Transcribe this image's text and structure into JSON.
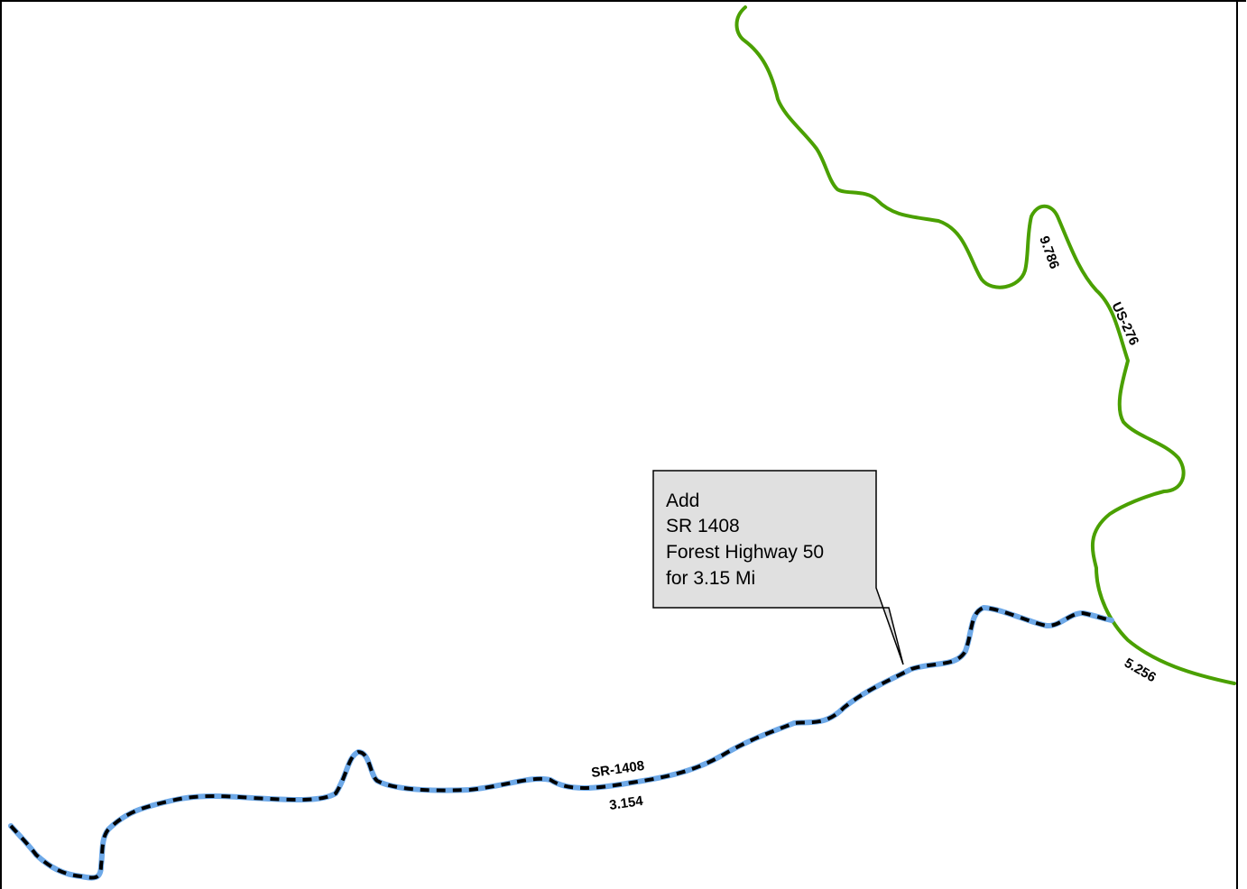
{
  "map": {
    "colors": {
      "highway": "#4aa000",
      "new_route_base": "#6ea9e8",
      "new_route_dash": "#000000",
      "callout_fill": "#e0e0e0",
      "frame": "#000000"
    },
    "roads": {
      "us276": {
        "name_label": "US-276",
        "mileage_north": "9.786",
        "mileage_south": "5.256"
      },
      "sr1408": {
        "name_label": "SR-1408",
        "mileage": "3.154"
      }
    },
    "callout": {
      "lines": [
        "Add",
        "SR 1408",
        "Forest Highway 50",
        "for 3.15 Mi"
      ]
    }
  }
}
